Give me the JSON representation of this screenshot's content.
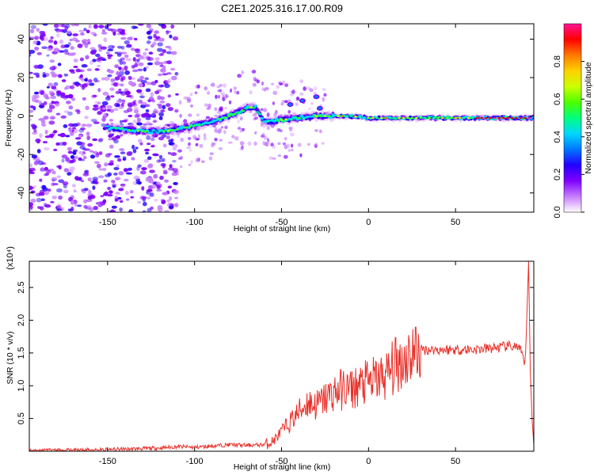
{
  "title": "C2E1.2025.316.17.00.R09",
  "chart_data": [
    {
      "type": "heatmap",
      "xlabel": "Height of straight line (km)",
      "ylabel": "Frequency (Hz)",
      "xlim": [
        -195,
        95
      ],
      "ylim": [
        -50,
        48
      ],
      "x_ticks": [
        -150,
        -100,
        -50,
        0,
        50
      ],
      "y_ticks": [
        -40,
        -20,
        0,
        20,
        40
      ],
      "colorbar": {
        "label": "Normalized spectral amplitude",
        "range": [
          0,
          1
        ],
        "ticks": [
          "0.0",
          "0.2",
          "0.4",
          "0.6",
          "0.8"
        ],
        "colormap": [
          "#ffffff",
          "#c77dff",
          "#7f00ff",
          "#2200ff",
          "#0077ff",
          "#00d8ff",
          "#00ff7f",
          "#4cff00",
          "#ccff00",
          "#ffd000",
          "#ff7a00",
          "#ff0000",
          "#ff1493"
        ]
      },
      "ridge": {
        "x": [
          -150,
          -140,
          -130,
          -120,
          -110,
          -100,
          -90,
          -80,
          -70,
          -65,
          -60,
          -50,
          -40,
          -30,
          -20,
          -10,
          0,
          10,
          20,
          40,
          60,
          80,
          95
        ],
        "y": [
          -6,
          -7,
          -8,
          -8,
          -7,
          -5,
          -3,
          0,
          4,
          5,
          -3,
          -2,
          -1,
          0,
          0,
          0,
          -1,
          -1,
          -1,
          -1,
          -1,
          -1,
          -1
        ]
      }
    },
    {
      "type": "line",
      "xlabel": "Height of straight line (km)",
      "ylabel": "SNR (10 * v/v)",
      "y_multiplier": "(x10⁴)",
      "xlim": [
        -195,
        95
      ],
      "ylim": [
        0,
        2.9
      ],
      "x_ticks": [
        -150,
        -100,
        -50,
        0,
        50
      ],
      "y_ticks": [
        "0.5",
        "1.0",
        "1.5",
        "2.0",
        "2.5"
      ],
      "series": [
        {
          "color": "#e8312a",
          "x": [
            -195,
            -180,
            -160,
            -140,
            -120,
            -110,
            -100,
            -90,
            -80,
            -70,
            -60,
            -55,
            -50,
            -45,
            -40,
            -35,
            -30,
            -25,
            -20,
            -15,
            -10,
            -5,
            0,
            5,
            10,
            15,
            20,
            25,
            30,
            40,
            50,
            60,
            70,
            80,
            85,
            88,
            90,
            92,
            93,
            94,
            95
          ],
          "y": [
            0.01,
            0.01,
            0.02,
            0.03,
            0.05,
            0.07,
            0.06,
            0.08,
            0.1,
            0.09,
            0.1,
            0.15,
            0.3,
            0.45,
            0.6,
            0.75,
            0.7,
            0.8,
            0.9,
            0.95,
            0.95,
            1.0,
            1.05,
            1.1,
            1.15,
            1.3,
            1.4,
            1.5,
            1.55,
            1.55,
            1.55,
            1.55,
            1.57,
            1.6,
            1.6,
            1.5,
            1.3,
            2.9,
            1.2,
            0.5,
            0.1
          ]
        }
      ]
    }
  ]
}
